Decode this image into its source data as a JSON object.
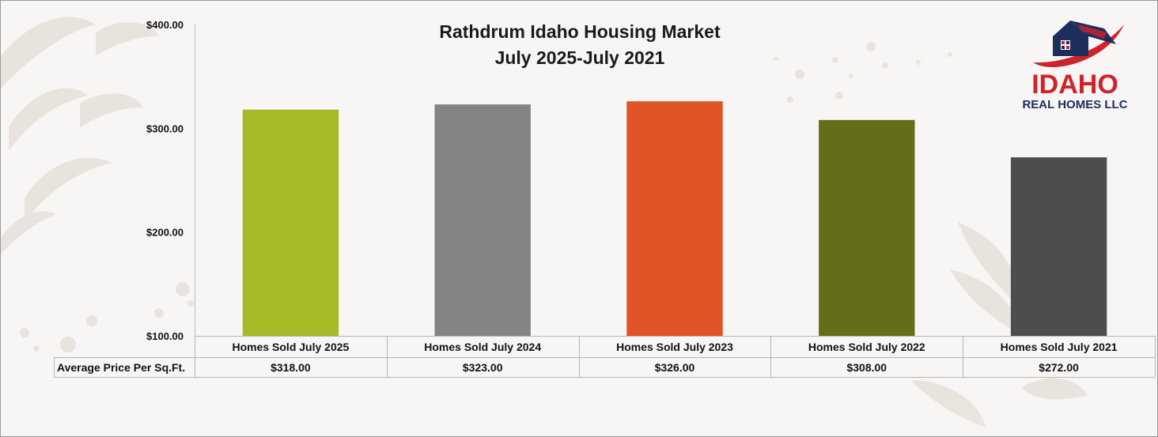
{
  "chart_data": {
    "type": "bar",
    "title": "Rathdrum Idaho Housing Market",
    "subtitle": "July 2025-July 2021",
    "categories": [
      "Homes Sold July 2025",
      "Homes Sold July 2024",
      "Homes Sold July 2023",
      "Homes Sold July 2022",
      "Homes Sold July 2021"
    ],
    "series": [
      {
        "name": "Average Price Per Sq.Ft.",
        "values": [
          318,
          323,
          326,
          308,
          272
        ],
        "display": [
          "$318.00",
          "$323.00",
          "$326.00",
          "$308.00",
          "$272.00"
        ]
      }
    ],
    "colors": [
      "#a8b928",
      "#848484",
      "#e05326",
      "#646e19",
      "#4d4d4d"
    ],
    "ylim": [
      100,
      400
    ],
    "yticks": [
      100,
      200,
      300,
      400
    ],
    "ytick_labels": [
      "$100.00",
      "$200.00",
      "$300.00",
      "$400.00"
    ],
    "grid": false,
    "legend": "data-table-below"
  },
  "logo": {
    "line1": "IDAHO",
    "line2": "REAL HOMES LLC",
    "red": "#d0222a",
    "navy": "#1c2d5e"
  }
}
